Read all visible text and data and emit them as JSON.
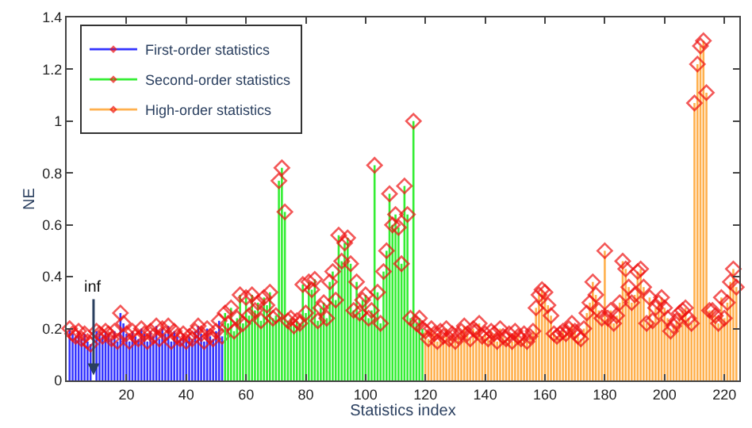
{
  "chart_data": {
    "type": "lollipop",
    "xlabel": "Statistics index",
    "ylabel": "NE",
    "xlim": [
      0,
      225
    ],
    "xticks": [
      20,
      40,
      60,
      80,
      100,
      120,
      140,
      160,
      180,
      200,
      220
    ],
    "ylim": [
      0,
      1.4
    ],
    "yticks": [
      0,
      0.2,
      0.4,
      0.6,
      0.8,
      1,
      1.2,
      1.4
    ],
    "legend": "top left",
    "marker": "diamond",
    "annotations": [
      "inf"
    ],
    "series": [
      {
        "name": "First-order statistics",
        "color": "#3333ff",
        "colors": [
          "#ee1111",
          "#ee1111",
          "#ee1111",
          "#ee1111",
          "#ee1111",
          "#ee1111",
          "#ee1111",
          "#ee1111",
          "#ee1111",
          "#ee1111",
          "#ee1111",
          "#ee1111",
          "#ee1111",
          "#ee1111",
          "#ee1111",
          "#ee1111",
          "#ee1111",
          "#ee1111",
          "#ee1111",
          "#ee1111",
          "#ee1111",
          "#ee1111",
          "#ee1111",
          "#ee1111",
          "#ee1111",
          "#ee1111",
          "#ee1111",
          "#ee1111",
          "#ee1111",
          "#ee1111",
          "#ee1111",
          "#ee1111",
          "#ee1111",
          "#ee1111",
          "#ee1111",
          "#ee1111",
          "#ee1111",
          "#ee1111",
          "#ee1111",
          "#ee1111",
          "#ee1111",
          "#ee1111",
          "#ee1111",
          "#ee1111",
          "#ee1111",
          "#ee1111",
          "#ee1111",
          "#ee1111",
          "#ee1111",
          "#ee1111",
          "#ee1111",
          "#ee1111"
        ],
        "x": [
          1,
          2,
          3,
          4,
          5,
          6,
          7,
          8,
          9,
          10,
          11,
          12,
          13,
          14,
          15,
          16,
          17,
          18,
          19,
          20,
          21,
          22,
          23,
          24,
          25,
          26,
          27,
          28,
          29,
          30,
          31,
          32,
          33,
          34,
          35,
          36,
          37,
          38,
          39,
          40,
          41,
          42,
          43,
          44,
          45,
          46,
          47,
          48,
          49,
          50,
          51,
          52
        ],
        "values": [
          0.2,
          0.18,
          0.17,
          0.19,
          0.16,
          0.18,
          0.15,
          0.14,
          null,
          0.19,
          0.18,
          0.17,
          0.19,
          0.18,
          0.16,
          0.19,
          0.15,
          0.26,
          0.22,
          0.18,
          0.15,
          0.19,
          0.17,
          0.16,
          0.2,
          0.18,
          0.15,
          0.19,
          0.17,
          0.21,
          0.16,
          0.2,
          0.18,
          0.21,
          0.15,
          0.19,
          0.17,
          0.16,
          0.18,
          0.15,
          0.17,
          0.16,
          0.19,
          0.21,
          0.18,
          0.15,
          0.2,
          0.17,
          0.16,
          0.19,
          0.23,
          0.17
        ]
      },
      {
        "name": "Second-order statistics",
        "color": "#33ee33",
        "colors": [
          "#ee1111",
          "#ee1111",
          "#ee1111",
          "#ee1111",
          "#ee1111",
          "#ee1111",
          "#ee1111",
          "#ee1111",
          "#ee1111",
          "#ee1111",
          "#ee1111",
          "#ee1111",
          "#ee1111",
          "#ee1111",
          "#ee1111",
          "#ee1111",
          "#ee1111",
          "#ee1111",
          "#ee1111",
          "#ee1111",
          "#ee1111",
          "#ee1111",
          "#ee1111",
          "#ee1111",
          "#ee1111",
          "#ee1111",
          "#ee1111",
          "#ee1111",
          "#ee1111",
          "#ee1111",
          "#ee1111",
          "#ee1111",
          "#ee1111",
          "#ee1111",
          "#ee1111",
          "#ee1111",
          "#ee1111",
          "#ee1111",
          "#ee1111",
          "#ee1111",
          "#ee1111",
          "#ee1111",
          "#ee1111",
          "#ee1111",
          "#ee1111",
          "#ee1111",
          "#ee1111",
          "#ee1111",
          "#ee1111",
          "#ee1111",
          "#ee1111",
          "#ee1111",
          "#ee1111",
          "#ee1111",
          "#ee1111",
          "#ee1111",
          "#ee1111",
          "#ee1111",
          "#ee1111",
          "#ee1111",
          "#ee1111",
          "#ee1111",
          "#ee1111",
          "#ee1111",
          "#ee1111",
          "#ee1111",
          "#ee1111"
        ],
        "x": [
          53,
          54,
          55,
          56,
          57,
          58,
          59,
          60,
          61,
          62,
          63,
          64,
          65,
          66,
          67,
          68,
          69,
          70,
          71,
          72,
          73,
          74,
          75,
          76,
          77,
          78,
          79,
          80,
          81,
          82,
          83,
          84,
          85,
          86,
          87,
          88,
          89,
          90,
          91,
          92,
          93,
          94,
          95,
          96,
          97,
          98,
          99,
          100,
          101,
          102,
          103,
          104,
          105,
          106,
          107,
          108,
          109,
          110,
          111,
          112,
          113,
          114,
          115,
          116,
          117,
          118,
          119
        ],
        "values": [
          0.26,
          0.22,
          0.28,
          0.19,
          0.24,
          0.33,
          0.22,
          0.32,
          0.25,
          0.33,
          0.27,
          0.3,
          0.23,
          0.32,
          0.29,
          0.34,
          0.24,
          0.25,
          0.77,
          0.82,
          0.65,
          0.23,
          0.24,
          0.21,
          0.23,
          0.22,
          0.37,
          0.26,
          0.38,
          0.35,
          0.39,
          0.23,
          0.28,
          0.3,
          0.24,
          0.38,
          0.42,
          0.31,
          0.56,
          0.46,
          0.53,
          0.55,
          0.45,
          0.27,
          0.38,
          0.26,
          0.31,
          0.33,
          0.24,
          0.27,
          0.83,
          0.34,
          0.22,
          0.42,
          0.5,
          0.72,
          0.6,
          0.64,
          0.59,
          0.45,
          0.75,
          0.64,
          0.24,
          1.0,
          0.22,
          0.24,
          0.2
        ]
      },
      {
        "name": "High-order statistics",
        "color": "#ffb04d",
        "colors": [
          "#ee1111",
          "#ee1111",
          "#ee1111",
          "#ee1111",
          "#ee1111",
          "#ee1111",
          "#ee1111",
          "#ee1111",
          "#ee1111",
          "#ee1111",
          "#ee1111",
          "#ee1111",
          "#ee1111",
          "#ee1111",
          "#ee1111",
          "#ee1111",
          "#ee1111",
          "#ee1111",
          "#ee1111",
          "#ee1111",
          "#ee1111",
          "#ee1111",
          "#ee1111",
          "#ee1111",
          "#ee1111",
          "#ee1111",
          "#ee1111",
          "#ee1111",
          "#ee1111",
          "#ee1111",
          "#ee1111",
          "#ee1111",
          "#ee1111",
          "#ee1111",
          "#ee1111",
          "#ee1111",
          "#ee1111",
          "#ee1111",
          "#ee1111",
          "#ee1111",
          "#ee1111",
          "#ee1111",
          "#ee1111",
          "#ee1111",
          "#ee1111",
          "#ee1111",
          "#ee1111",
          "#ee1111",
          "#ee1111",
          "#ee1111",
          "#ee1111",
          "#ee1111",
          "#ee1111",
          "#ee1111",
          "#ee1111",
          "#ee1111",
          "#ee1111",
          "#ee1111",
          "#ee1111",
          "#ee1111",
          "#ee1111",
          "#ee1111",
          "#ee1111",
          "#ee1111",
          "#ee1111",
          "#ee1111",
          "#ee1111",
          "#ee1111",
          "#ee1111",
          "#ee1111",
          "#ee1111",
          "#ee1111",
          "#ee1111",
          "#ee1111",
          "#ee1111",
          "#ee1111",
          "#ee1111",
          "#ee1111",
          "#ee1111",
          "#ee1111",
          "#ee1111",
          "#ee1111",
          "#ee1111",
          "#ee1111",
          "#ee1111",
          "#ee1111",
          "#ee1111",
          "#ee1111",
          "#ee1111",
          "#ee1111",
          "#ee1111",
          "#ee1111",
          "#ee1111",
          "#ee1111",
          "#ee1111",
          "#ee1111",
          "#ee1111",
          "#ee1111",
          "#ee1111",
          "#ee1111",
          "#ee1111",
          "#ee1111",
          "#ee1111",
          "#ee1111",
          "#ee1111"
        ],
        "x": [
          120,
          121,
          122,
          123,
          124,
          125,
          126,
          127,
          128,
          129,
          130,
          131,
          132,
          133,
          134,
          135,
          136,
          137,
          138,
          139,
          140,
          141,
          142,
          143,
          144,
          145,
          146,
          147,
          148,
          149,
          150,
          151,
          152,
          153,
          154,
          155,
          156,
          157,
          158,
          159,
          160,
          161,
          162,
          163,
          164,
          165,
          166,
          167,
          168,
          169,
          170,
          171,
          172,
          173,
          174,
          175,
          176,
          177,
          178,
          179,
          180,
          181,
          182,
          183,
          184,
          185,
          186,
          187,
          188,
          189,
          190,
          191,
          192,
          193,
          194,
          195,
          196,
          197,
          198,
          199,
          200,
          201,
          202,
          203,
          204,
          205,
          206,
          207,
          208,
          209,
          210,
          211,
          212,
          213,
          214,
          215,
          216,
          217,
          218,
          219,
          220,
          221,
          222,
          223,
          224
        ],
        "values": [
          0.19,
          0.16,
          0.2,
          0.18,
          0.15,
          0.19,
          0.17,
          0.2,
          0.16,
          0.18,
          0.15,
          0.17,
          0.19,
          0.21,
          0.18,
          0.16,
          0.2,
          0.19,
          0.22,
          0.17,
          0.18,
          0.16,
          0.19,
          0.18,
          0.15,
          0.2,
          0.17,
          0.16,
          0.18,
          0.15,
          0.19,
          0.17,
          0.16,
          0.18,
          0.15,
          0.17,
          0.19,
          0.28,
          0.33,
          0.35,
          0.34,
          0.29,
          0.25,
          0.18,
          0.17,
          0.18,
          0.19,
          0.18,
          0.2,
          0.22,
          0.19,
          0.17,
          0.16,
          0.2,
          0.26,
          0.3,
          0.38,
          0.33,
          0.27,
          0.24,
          0.5,
          0.24,
          0.27,
          0.22,
          0.25,
          0.3,
          0.46,
          0.43,
          0.36,
          0.3,
          0.33,
          0.42,
          0.43,
          0.36,
          0.22,
          0.32,
          0.23,
          0.28,
          0.3,
          0.32,
          0.28,
          0.24,
          0.19,
          0.21,
          0.23,
          0.26,
          0.27,
          0.28,
          0.24,
          0.22,
          1.07,
          1.22,
          1.29,
          1.31,
          1.11,
          0.27,
          0.27,
          0.25,
          0.22,
          0.32,
          0.24,
          0.3,
          0.38,
          0.43,
          0.36
        ]
      }
    ]
  }
}
